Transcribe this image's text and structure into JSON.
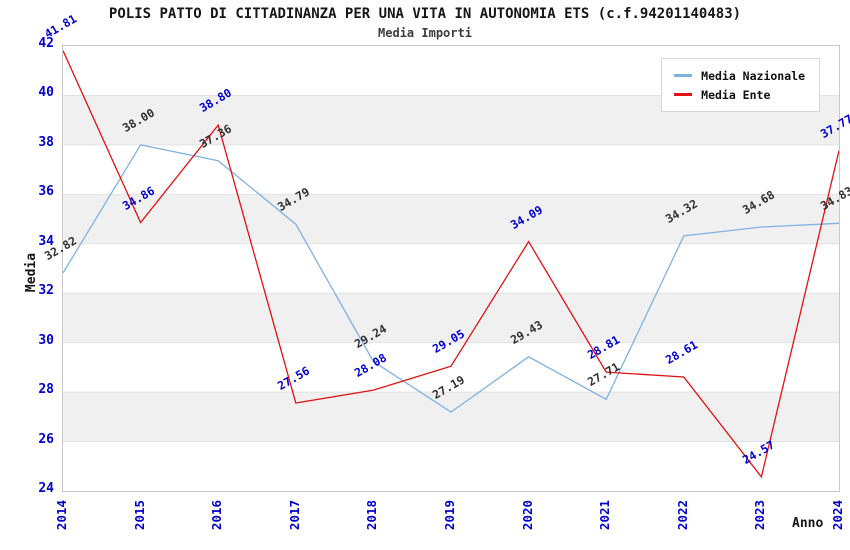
{
  "title": "POLIS PATTO DI CITTADINANZA PER UNA VITA IN AUTONOMIA ETS (c.f.94201140483)",
  "subtitle": "Media Importi",
  "chart_data": {
    "type": "line",
    "x": [
      2014,
      2015,
      2016,
      2017,
      2018,
      2019,
      2020,
      2021,
      2022,
      2023,
      2024
    ],
    "xlabel": "Anno",
    "ylabel": "Media",
    "ylim": [
      24,
      42
    ],
    "ytick_step": 2,
    "grid": "alternating-horizontal-bands",
    "legend_position": "top-right",
    "series": [
      {
        "name": "Media Nazionale",
        "color": "#7fb1e2",
        "label_color": "#303030",
        "values": [
          32.82,
          38.0,
          37.36,
          34.79,
          29.24,
          27.19,
          29.43,
          27.71,
          34.32,
          34.68,
          34.83
        ]
      },
      {
        "name": "Media Ente",
        "color": "#e01212",
        "label_color": "#0000cc",
        "values": [
          41.81,
          34.86,
          38.8,
          27.56,
          28.08,
          29.05,
          34.09,
          28.81,
          28.61,
          24.57,
          37.77
        ]
      }
    ]
  },
  "colors": {
    "band_gray": "#f0f0f0",
    "band_white": "#ffffff",
    "gridline": "#e2e2e2",
    "plot_border": "#c9c9c9",
    "tick_text": "#0000cc",
    "title_text": "#161616"
  }
}
